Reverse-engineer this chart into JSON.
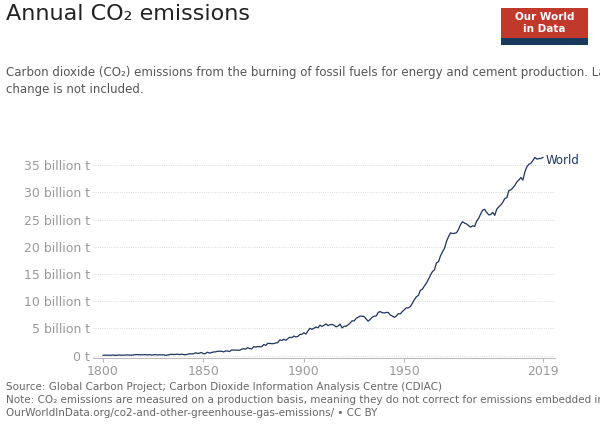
{
  "title": "Annual CO₂ emissions",
  "subtitle": "Carbon dioxide (CO₂) emissions from the burning of fossil fuels for energy and cement production. Land use\nchange is not included.",
  "source": "Source: Global Carbon Project; Carbon Dioxide Information Analysis Centre (CDIAC)\nNote: CO₂ emissions are measured on a production basis, meaning they do not correct for emissions embedded in traded goods.\nOurWorldInData.org/co2-and-other-greenhouse-gas-emissions/ • CC BY",
  "series_label": "World",
  "line_color": "#1d3461",
  "background_color": "#ffffff",
  "grid_color": "#cccccc",
  "tick_color": "#999999",
  "text_color": "#333333",
  "subtitle_color": "#555555",
  "source_color": "#666666",
  "ytick_values": [
    0,
    5,
    10,
    15,
    20,
    25,
    30,
    35
  ],
  "ytick_labels": [
    "0 t",
    "5 billion t",
    "10 billion t",
    "15 billion t",
    "20 billion t",
    "25 billion t",
    "30 billion t",
    "35 billion t"
  ],
  "xticks": [
    1800,
    1850,
    1900,
    1950,
    2019
  ],
  "xlim": [
    1795,
    2025
  ],
  "ylim": [
    -0.5,
    38.5
  ],
  "owid_box_color": "#c0392b",
  "owid_stripe_color": "#e74c3c",
  "owid_text": "Our World\nin Data",
  "title_fontsize": 16,
  "subtitle_fontsize": 8.5,
  "tick_fontsize": 9,
  "source_fontsize": 7.5,
  "label_fontsize": 8.5
}
